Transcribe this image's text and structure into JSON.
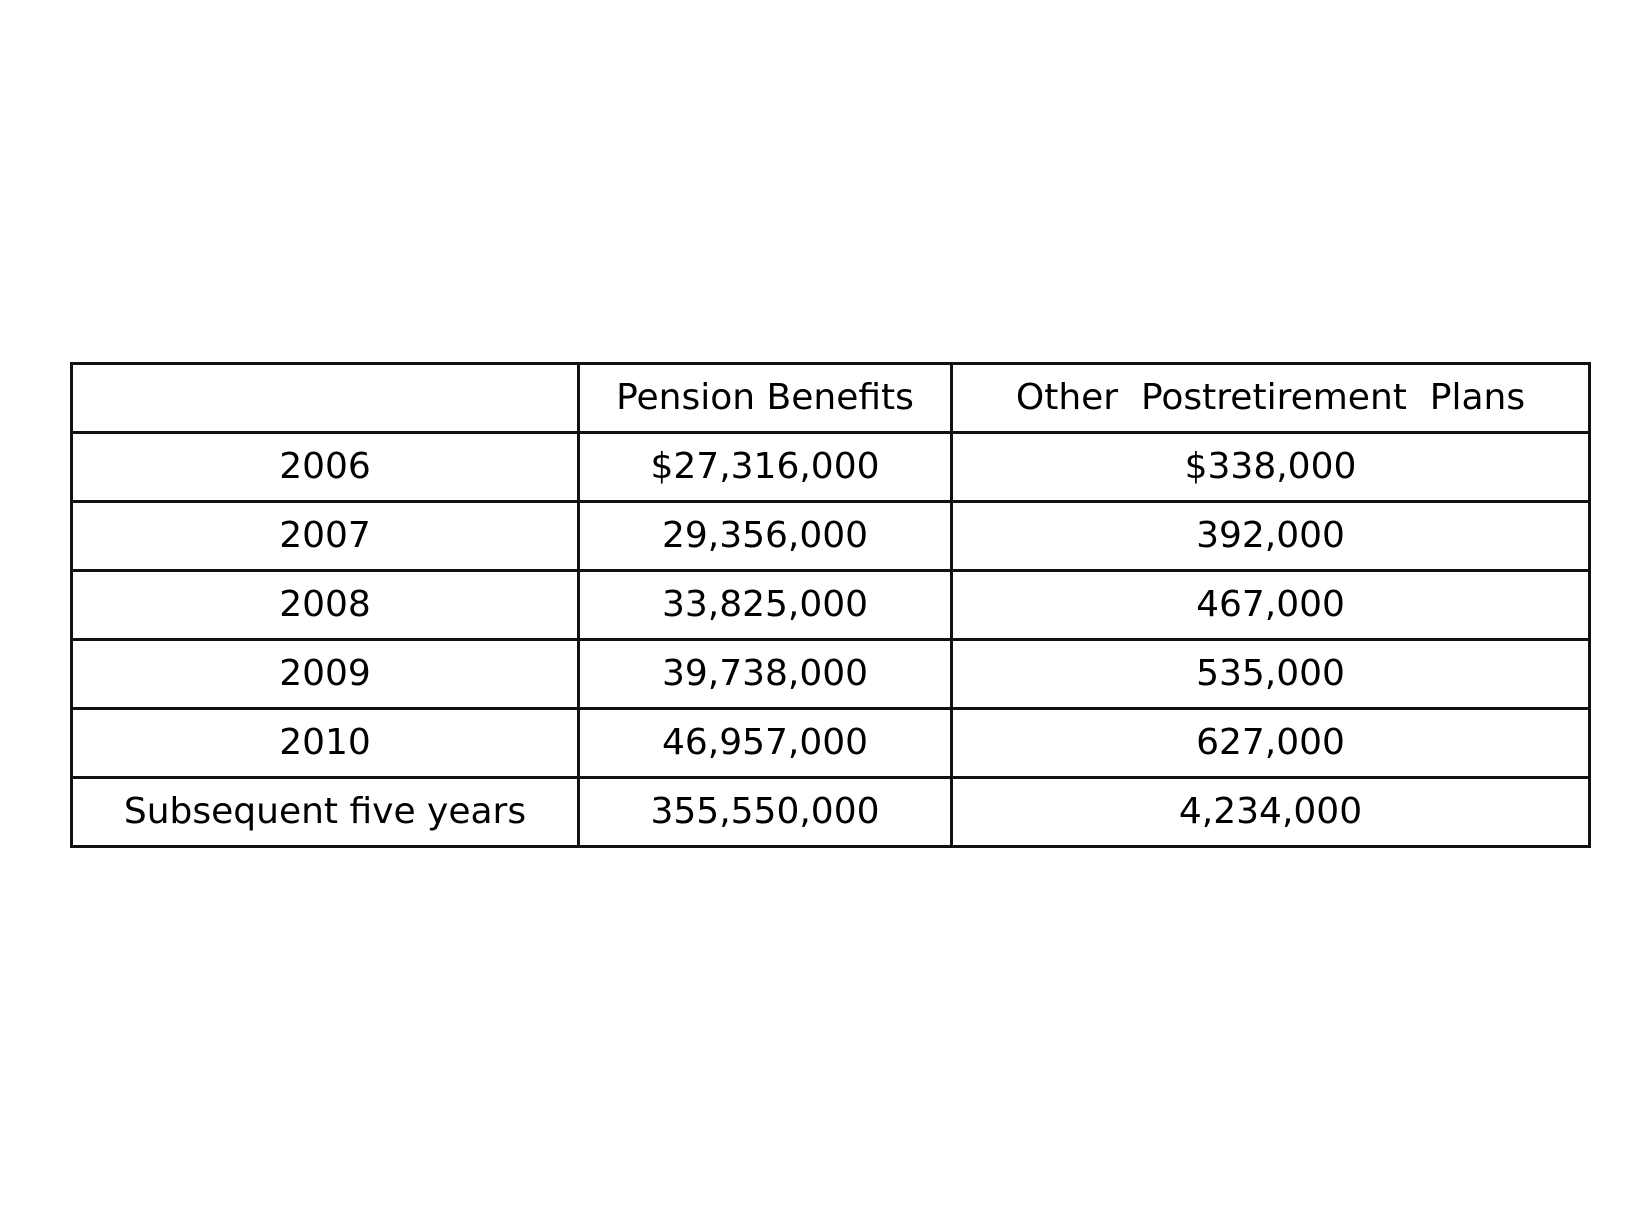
{
  "table": {
    "headers": [
      "",
      "Pension Benefits",
      "Other  Postretirement  Plans"
    ],
    "rows": [
      [
        "2006",
        "$27,316,000",
        "$338,000"
      ],
      [
        "2007",
        "29,356,000",
        "392,000"
      ],
      [
        "2008",
        "33,825,000",
        "467,000"
      ],
      [
        "2009",
        "39,738,000",
        "535,000"
      ],
      [
        "2010",
        "46,957,000",
        "627,000"
      ],
      [
        "Subsequent five years",
        "355,550,000",
        "4,234,000"
      ]
    ]
  }
}
